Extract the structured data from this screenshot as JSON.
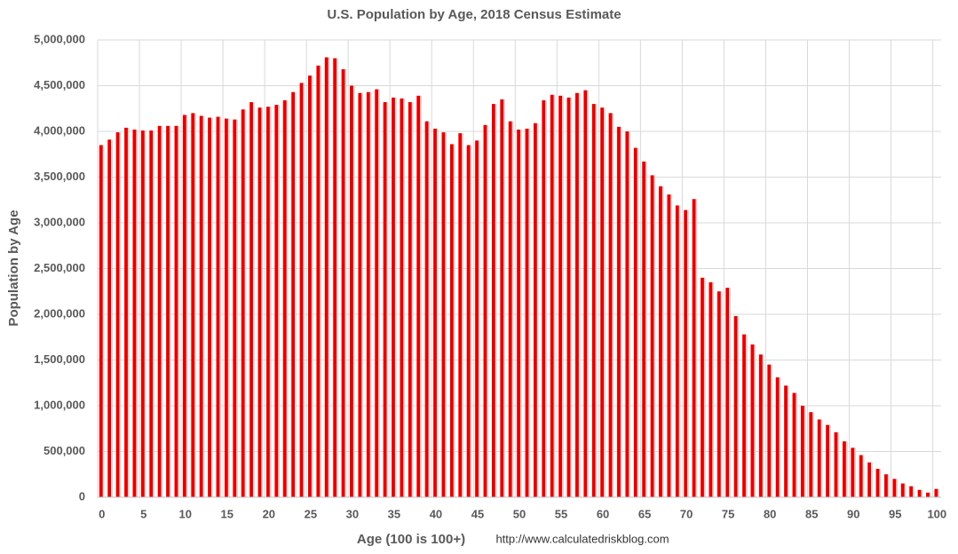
{
  "chart_data": {
    "type": "bar",
    "title": "U.S. Population by Age, 2018 Census Estimate",
    "x_label": "Age (100 is 100+)",
    "y_label": "Population by Age",
    "source": "http://www.calculatedriskblog.com",
    "color": "#e00000",
    "grid": true,
    "categories": [
      0,
      null,
      null,
      null,
      null,
      5,
      null,
      null,
      null,
      null,
      10,
      null,
      null,
      null,
      null,
      15,
      null,
      null,
      null,
      null,
      20,
      null,
      null,
      null,
      null,
      25,
      null,
      null,
      null,
      null,
      30,
      null,
      null,
      null,
      null,
      35,
      null,
      null,
      null,
      null,
      40,
      null,
      null,
      null,
      null,
      45,
      null,
      null,
      null,
      null,
      50,
      null,
      null,
      null,
      null,
      55,
      null,
      null,
      null,
      null,
      60,
      null,
      null,
      null,
      null,
      65,
      null,
      null,
      null,
      null,
      70,
      null,
      null,
      null,
      null,
      75,
      null,
      null,
      null,
      null,
      80,
      null,
      null,
      null,
      null,
      85,
      null,
      null,
      null,
      null,
      90,
      null,
      null,
      null,
      null,
      95,
      null,
      null,
      null,
      null,
      100
    ],
    "values": [
      3850000,
      3910000,
      3990000,
      4040000,
      4020000,
      4010000,
      4010000,
      4060000,
      4060000,
      4060000,
      4180000,
      4200000,
      4170000,
      4150000,
      4160000,
      4140000,
      4130000,
      4240000,
      4320000,
      4260000,
      4270000,
      4290000,
      4340000,
      4430000,
      4530000,
      4610000,
      4720000,
      4810000,
      4800000,
      4680000,
      4500000,
      4420000,
      4430000,
      4460000,
      4320000,
      4370000,
      4360000,
      4320000,
      4390000,
      4110000,
      4030000,
      3990000,
      3860000,
      3980000,
      3850000,
      3900000,
      4070000,
      4300000,
      4350000,
      4110000,
      4020000,
      4030000,
      4090000,
      4340000,
      4400000,
      4390000,
      4370000,
      4420000,
      4450000,
      4300000,
      4260000,
      4200000,
      4050000,
      4000000,
      3820000,
      3670000,
      3520000,
      3400000,
      3310000,
      3190000,
      3140000,
      3260000,
      2400000,
      2350000,
      2250000,
      2290000,
      1980000,
      1780000,
      1670000,
      1560000,
      1450000,
      1310000,
      1220000,
      1140000,
      1000000,
      930000,
      850000,
      790000,
      710000,
      610000,
      540000,
      460000,
      380000,
      310000,
      250000,
      200000,
      150000,
      120000,
      80000,
      50000,
      90000
    ],
    "ylim": [
      0,
      5000000
    ],
    "yticks": [
      0,
      {
        "value": 500000,
        "label": "500,000"
      },
      {
        "value": 1000000,
        "label": "1,000,000"
      },
      {
        "value": 1500000,
        "label": "1,500,000"
      },
      {
        "value": 2000000,
        "label": "2,000,000"
      },
      {
        "value": 2500000,
        "label": "2,500,000"
      },
      {
        "value": 3000000,
        "label": "3,000,000"
      },
      {
        "value": 3500000,
        "label": "3,500,000"
      },
      {
        "value": 4000000,
        "label": "4,000,000"
      },
      {
        "value": 4500000,
        "label": "4,500,000"
      },
      {
        "value": 5000000,
        "label": "5,000,000"
      }
    ]
  }
}
